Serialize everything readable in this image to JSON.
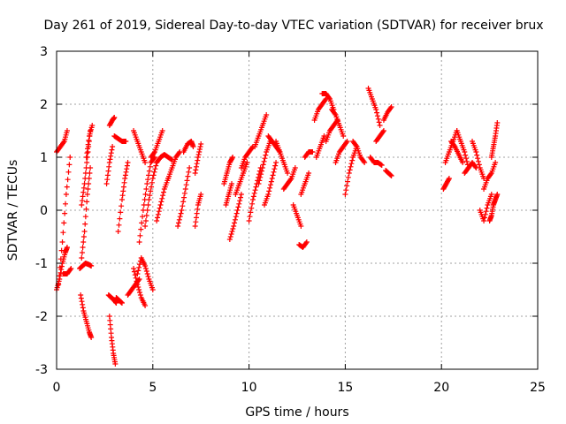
{
  "chart_data": {
    "type": "scatter",
    "title": "Day 261 of 2019, Sidereal Day-to-day VTEC variation (SDTVAR) for receiver brux",
    "xlabel": "GPS time / hours",
    "ylabel": "SDTVAR / TECUs",
    "xlim": [
      0,
      25
    ],
    "ylim": [
      -3,
      3
    ],
    "x_ticks": [
      0,
      5,
      10,
      15,
      20,
      25
    ],
    "x_tick_labels": [
      "0",
      "5",
      "10",
      "15",
      "20",
      "25"
    ],
    "y_ticks": [
      -3,
      -2,
      -1,
      0,
      1,
      2,
      3
    ],
    "y_tick_labels": [
      "-3",
      "-2",
      "-1",
      "0",
      "1",
      "2",
      "3"
    ],
    "grid": true,
    "marker": "plus",
    "color": "#ff0000",
    "segments": [
      {
        "x": [
          0.0,
          0.15,
          0.3,
          0.45,
          0.55
        ],
        "y": [
          -1.5,
          -1.3,
          -1.0,
          -0.8,
          -0.7
        ]
      },
      {
        "x": [
          0.0,
          0.2,
          0.4,
          0.55
        ],
        "y": [
          1.1,
          1.2,
          1.3,
          1.5
        ]
      },
      {
        "x": [
          0.1,
          0.3,
          0.5,
          0.7
        ],
        "y": [
          -1.4,
          -0.6,
          0.3,
          1.0
        ]
      },
      {
        "x": [
          0.35,
          0.55,
          0.75
        ],
        "y": [
          -1.2,
          -1.2,
          -1.1
        ]
      },
      {
        "x": [
          1.2,
          1.35,
          1.5,
          1.65,
          1.8
        ],
        "y": [
          -1.1,
          -1.05,
          -1.0,
          -1.02,
          -1.05
        ]
      },
      {
        "x": [
          1.25,
          1.4,
          1.55,
          1.7,
          1.8
        ],
        "y": [
          -1.6,
          -1.9,
          -2.1,
          -2.3,
          -2.4
        ]
      },
      {
        "x": [
          1.3,
          1.45,
          1.6,
          1.75
        ],
        "y": [
          0.1,
          0.5,
          1.0,
          1.5
        ]
      },
      {
        "x": [
          1.3,
          1.45,
          1.6,
          1.75
        ],
        "y": [
          -0.9,
          -0.4,
          0.3,
          0.8
        ]
      },
      {
        "x": [
          1.55,
          1.7,
          1.85
        ],
        "y": [
          1.0,
          1.4,
          1.6
        ]
      },
      {
        "x": [
          2.7,
          2.85,
          3.0,
          3.1
        ],
        "y": [
          -1.6,
          -1.65,
          -1.7,
          -1.75
        ]
      },
      {
        "x": [
          2.75,
          2.85,
          2.95,
          3.05
        ],
        "y": [
          -2.0,
          -2.4,
          -2.7,
          -2.9
        ]
      },
      {
        "x": [
          2.75,
          2.9,
          3.0
        ],
        "y": [
          1.6,
          1.7,
          1.75
        ]
      },
      {
        "x": [
          2.6,
          2.75,
          2.9
        ],
        "y": [
          0.5,
          0.9,
          1.2
        ]
      },
      {
        "x": [
          3.0,
          3.2,
          3.4,
          3.6
        ],
        "y": [
          1.4,
          1.35,
          1.3,
          1.3
        ]
      },
      {
        "x": [
          3.1,
          3.25,
          3.4
        ],
        "y": [
          -1.65,
          -1.7,
          -1.75
        ]
      },
      {
        "x": [
          3.2,
          3.4,
          3.55,
          3.7
        ],
        "y": [
          -0.4,
          0.2,
          0.6,
          0.9
        ]
      },
      {
        "x": [
          3.7,
          3.9,
          4.1,
          4.3
        ],
        "y": [
          -1.6,
          -1.5,
          -1.4,
          -1.3
        ]
      },
      {
        "x": [
          4.0,
          4.2,
          4.4,
          4.6
        ],
        "y": [
          1.5,
          1.3,
          1.1,
          0.9
        ]
      },
      {
        "x": [
          4.0,
          4.2,
          4.4,
          4.6
        ],
        "y": [
          -1.1,
          -1.4,
          -1.65,
          -1.8
        ]
      },
      {
        "x": [
          4.2,
          4.4,
          4.6,
          4.8,
          5.0
        ],
        "y": [
          -1.2,
          -0.9,
          -1.05,
          -1.3,
          -1.5
        ]
      },
      {
        "x": [
          4.3,
          4.5,
          4.7,
          4.9,
          5.1
        ],
        "y": [
          -0.6,
          0.0,
          0.5,
          0.9,
          1.0
        ]
      },
      {
        "x": [
          4.6,
          4.8,
          5.0,
          5.2
        ],
        "y": [
          -0.3,
          0.2,
          0.6,
          0.9
        ]
      },
      {
        "x": [
          4.9,
          5.1,
          5.3,
          5.5
        ],
        "y": [
          1.0,
          1.1,
          1.3,
          1.5
        ]
      },
      {
        "x": [
          5.2,
          5.4,
          5.6,
          5.8,
          6.0
        ],
        "y": [
          0.9,
          1.0,
          1.05,
          1.0,
          0.95
        ]
      },
      {
        "x": [
          5.2,
          5.4,
          5.6,
          5.8
        ],
        "y": [
          -0.2,
          0.1,
          0.4,
          0.6
        ]
      },
      {
        "x": [
          5.8,
          6.0,
          6.2,
          6.4
        ],
        "y": [
          0.6,
          0.8,
          1.0,
          1.1
        ]
      },
      {
        "x": [
          6.3,
          6.5,
          6.7,
          6.9
        ],
        "y": [
          -0.3,
          0.0,
          0.4,
          0.8
        ]
      },
      {
        "x": [
          6.6,
          6.8,
          7.0,
          7.1
        ],
        "y": [
          1.1,
          1.25,
          1.3,
          1.2
        ]
      },
      {
        "x": [
          7.2,
          7.35,
          7.5
        ],
        "y": [
          -0.3,
          0.1,
          0.3
        ]
      },
      {
        "x": [
          7.2,
          7.35,
          7.5
        ],
        "y": [
          0.7,
          1.0,
          1.25
        ]
      },
      {
        "x": [
          8.7,
          8.85,
          9.0,
          9.15
        ],
        "y": [
          0.5,
          0.7,
          0.9,
          1.0
        ]
      },
      {
        "x": [
          8.8,
          8.95,
          9.1
        ],
        "y": [
          0.1,
          0.3,
          0.5
        ]
      },
      {
        "x": [
          9.0,
          9.2,
          9.4,
          9.6
        ],
        "y": [
          -0.55,
          -0.3,
          0.0,
          0.3
        ]
      },
      {
        "x": [
          9.3,
          9.5,
          9.7,
          9.9
        ],
        "y": [
          0.3,
          0.5,
          0.7,
          0.9
        ]
      },
      {
        "x": [
          9.6,
          9.8,
          10.0,
          10.2
        ],
        "y": [
          0.8,
          1.0,
          1.1,
          1.2
        ]
      },
      {
        "x": [
          10.0,
          10.2,
          10.4,
          10.6
        ],
        "y": [
          -0.2,
          0.2,
          0.5,
          0.8
        ]
      },
      {
        "x": [
          10.3,
          10.5,
          10.7,
          10.9
        ],
        "y": [
          1.2,
          1.4,
          1.6,
          1.8
        ]
      },
      {
        "x": [
          10.5,
          10.7,
          10.9,
          11.1
        ],
        "y": [
          0.5,
          0.8,
          1.1,
          1.3
        ]
      },
      {
        "x": [
          10.8,
          11.0,
          11.2,
          11.4
        ],
        "y": [
          0.1,
          0.3,
          0.6,
          0.9
        ]
      },
      {
        "x": [
          11.0,
          11.2,
          11.4,
          11.6
        ],
        "y": [
          1.4,
          1.3,
          1.2,
          1.1
        ]
      },
      {
        "x": [
          11.4,
          11.6,
          11.8,
          12.0
        ],
        "y": [
          1.3,
          1.1,
          0.9,
          0.7
        ]
      },
      {
        "x": [
          11.8,
          12.0,
          12.2,
          12.4
        ],
        "y": [
          0.4,
          0.5,
          0.6,
          0.8
        ]
      },
      {
        "x": [
          12.3,
          12.5,
          12.7
        ],
        "y": [
          0.1,
          -0.1,
          -0.3
        ]
      },
      {
        "x": [
          12.6,
          12.8,
          13.0
        ],
        "y": [
          -0.65,
          -0.7,
          -0.6
        ]
      },
      {
        "x": [
          12.7,
          12.9,
          13.1
        ],
        "y": [
          0.3,
          0.5,
          0.7
        ]
      },
      {
        "x": [
          12.9,
          13.1,
          13.3
        ],
        "y": [
          1.0,
          1.1,
          1.1
        ]
      },
      {
        "x": [
          13.4,
          13.6,
          13.8,
          14.0
        ],
        "y": [
          1.7,
          1.9,
          2.0,
          2.1
        ]
      },
      {
        "x": [
          13.5,
          13.7,
          13.9
        ],
        "y": [
          1.0,
          1.2,
          1.4
        ]
      },
      {
        "x": [
          13.8,
          14.0,
          14.2,
          14.4
        ],
        "y": [
          2.2,
          2.2,
          2.1,
          1.9
        ]
      },
      {
        "x": [
          14.0,
          14.2,
          14.4,
          14.6
        ],
        "y": [
          1.3,
          1.5,
          1.6,
          1.7
        ]
      },
      {
        "x": [
          14.3,
          14.5,
          14.7,
          14.9
        ],
        "y": [
          1.9,
          1.8,
          1.6,
          1.4
        ]
      },
      {
        "x": [
          14.5,
          14.7,
          14.9,
          15.1
        ],
        "y": [
          0.9,
          1.1,
          1.2,
          1.3
        ]
      },
      {
        "x": [
          15.0,
          15.2,
          15.4,
          15.6
        ],
        "y": [
          0.3,
          0.7,
          1.0,
          1.2
        ]
      },
      {
        "x": [
          15.4,
          15.6,
          15.8,
          16.0
        ],
        "y": [
          1.3,
          1.2,
          1.0,
          0.9
        ]
      },
      {
        "x": [
          16.2,
          16.4,
          16.6,
          16.8
        ],
        "y": [
          2.3,
          2.1,
          1.9,
          1.6
        ]
      },
      {
        "x": [
          16.3,
          16.5,
          16.7,
          16.9
        ],
        "y": [
          1.0,
          0.9,
          0.9,
          0.85
        ]
      },
      {
        "x": [
          16.6,
          16.8,
          17.0
        ],
        "y": [
          1.3,
          1.4,
          1.5
        ]
      },
      {
        "x": [
          17.0,
          17.2,
          17.4
        ],
        "y": [
          1.7,
          1.85,
          1.95
        ]
      },
      {
        "x": [
          17.1,
          17.25,
          17.4
        ],
        "y": [
          0.75,
          0.7,
          0.65
        ]
      },
      {
        "x": [
          20.1,
          20.25,
          20.4
        ],
        "y": [
          0.4,
          0.5,
          0.6
        ]
      },
      {
        "x": [
          20.2,
          20.4,
          20.6,
          20.8
        ],
        "y": [
          0.9,
          1.1,
          1.3,
          1.5
        ]
      },
      {
        "x": [
          20.5,
          20.7,
          20.9,
          21.1
        ],
        "y": [
          1.3,
          1.2,
          1.05,
          0.9
        ]
      },
      {
        "x": [
          20.8,
          21.0,
          21.2,
          21.4
        ],
        "y": [
          1.5,
          1.3,
          1.1,
          0.8
        ]
      },
      {
        "x": [
          21.2,
          21.4,
          21.6,
          21.8
        ],
        "y": [
          0.7,
          0.8,
          0.9,
          0.8
        ]
      },
      {
        "x": [
          21.6,
          21.8,
          22.0,
          22.2
        ],
        "y": [
          1.3,
          1.1,
          0.8,
          0.6
        ]
      },
      {
        "x": [
          22.0,
          22.2,
          22.4,
          22.6
        ],
        "y": [
          0.0,
          -0.2,
          0.1,
          0.3
        ]
      },
      {
        "x": [
          22.2,
          22.4,
          22.6,
          22.8
        ],
        "y": [
          0.4,
          0.6,
          0.7,
          0.9
        ]
      },
      {
        "x": [
          22.5,
          22.6,
          22.7,
          22.8,
          22.9
        ],
        "y": [
          -0.2,
          -0.1,
          0.1,
          0.2,
          0.3
        ]
      },
      {
        "x": [
          22.6,
          22.7,
          22.8,
          22.9
        ],
        "y": [
          1.0,
          1.2,
          1.4,
          1.65
        ]
      }
    ]
  }
}
